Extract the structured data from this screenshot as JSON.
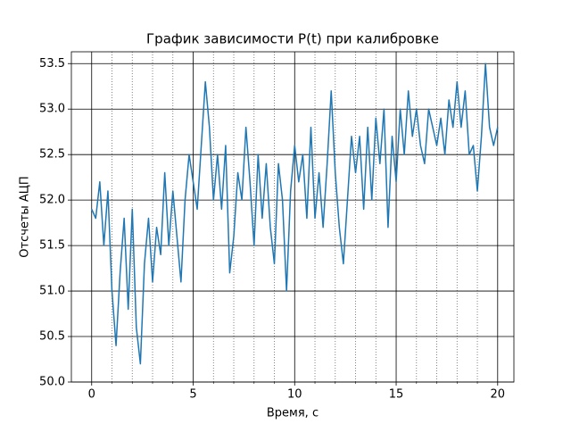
{
  "chart_data": {
    "type": "line",
    "title": "График зависимости P(t) при калибровке",
    "x_label": "Время, с",
    "y_label": "Отсчеты АЦП",
    "x": [
      0,
      0.2,
      0.4,
      0.6,
      0.8,
      1,
      1.2,
      1.4,
      1.6,
      1.8,
      2,
      2.2,
      2.4,
      2.6,
      2.8,
      3,
      3.2,
      3.4,
      3.6,
      3.8,
      4,
      4.2,
      4.4,
      4.6,
      4.8,
      5,
      5.2,
      5.4,
      5.6,
      5.8,
      6,
      6.2,
      6.4,
      6.6,
      6.8,
      7,
      7.2,
      7.4,
      7.6,
      7.8,
      8,
      8.2,
      8.4,
      8.6,
      8.8,
      9,
      9.2,
      9.4,
      9.6,
      9.8,
      10,
      10.2,
      10.4,
      10.6,
      10.8,
      11,
      11.2,
      11.4,
      11.6,
      11.8,
      12,
      12.2,
      12.4,
      12.6,
      12.8,
      13,
      13.2,
      13.4,
      13.6,
      13.8,
      14,
      14.2,
      14.4,
      14.6,
      14.8,
      15,
      15.2,
      15.4,
      15.6,
      15.8,
      16,
      16.2,
      16.4,
      16.6,
      16.8,
      17,
      17.2,
      17.4,
      17.6,
      17.8,
      18,
      18.2,
      18.4,
      18.6,
      18.8,
      19,
      19.2,
      19.4,
      19.6,
      19.8,
      20
    ],
    "values": [
      51.9,
      51.8,
      52.2,
      51.5,
      52.1,
      51.0,
      50.4,
      51.2,
      51.8,
      50.8,
      51.9,
      50.6,
      50.2,
      51.3,
      51.8,
      51.1,
      51.7,
      51.4,
      52.3,
      51.5,
      52.1,
      51.6,
      51.1,
      52.0,
      52.5,
      52.2,
      51.9,
      52.6,
      53.3,
      52.8,
      52.0,
      52.5,
      51.9,
      52.6,
      51.2,
      51.6,
      52.3,
      52.0,
      52.8,
      52.2,
      51.5,
      52.5,
      51.8,
      52.4,
      51.7,
      51.3,
      52.4,
      52.0,
      51.0,
      52.1,
      52.6,
      52.2,
      52.5,
      51.8,
      52.8,
      51.8,
      52.3,
      51.7,
      52.4,
      53.2,
      52.3,
      51.7,
      51.3,
      52.0,
      52.7,
      52.3,
      52.7,
      51.9,
      52.8,
      52.0,
      52.9,
      52.4,
      53.0,
      51.7,
      52.7,
      52.2,
      53.0,
      52.5,
      53.2,
      52.7,
      53.0,
      52.6,
      52.4,
      53.0,
      52.8,
      52.6,
      52.9,
      52.5,
      53.1,
      52.8,
      53.3,
      52.8,
      53.2,
      52.5,
      52.6,
      52.1,
      52.7,
      53.5,
      52.8,
      52.6,
      52.8
    ],
    "color": "#1f77b4",
    "xlim": [
      -1,
      20.8
    ],
    "ylim": [
      50.0,
      53.63
    ],
    "xticks": [
      0,
      5,
      10,
      15,
      20
    ],
    "xminorticks": [
      1,
      2,
      3,
      4,
      6,
      7,
      8,
      9,
      11,
      12,
      13,
      14,
      16,
      17,
      18,
      19
    ],
    "yticks": [
      {
        "value": 50,
        "label": "50.0"
      },
      50.5,
      {
        "value": 51,
        "label": "51.0"
      },
      51.5,
      {
        "value": 52,
        "label": "52.0"
      },
      52.5,
      {
        "value": 53,
        "label": "53.0"
      },
      53.5
    ],
    "grid": true
  }
}
